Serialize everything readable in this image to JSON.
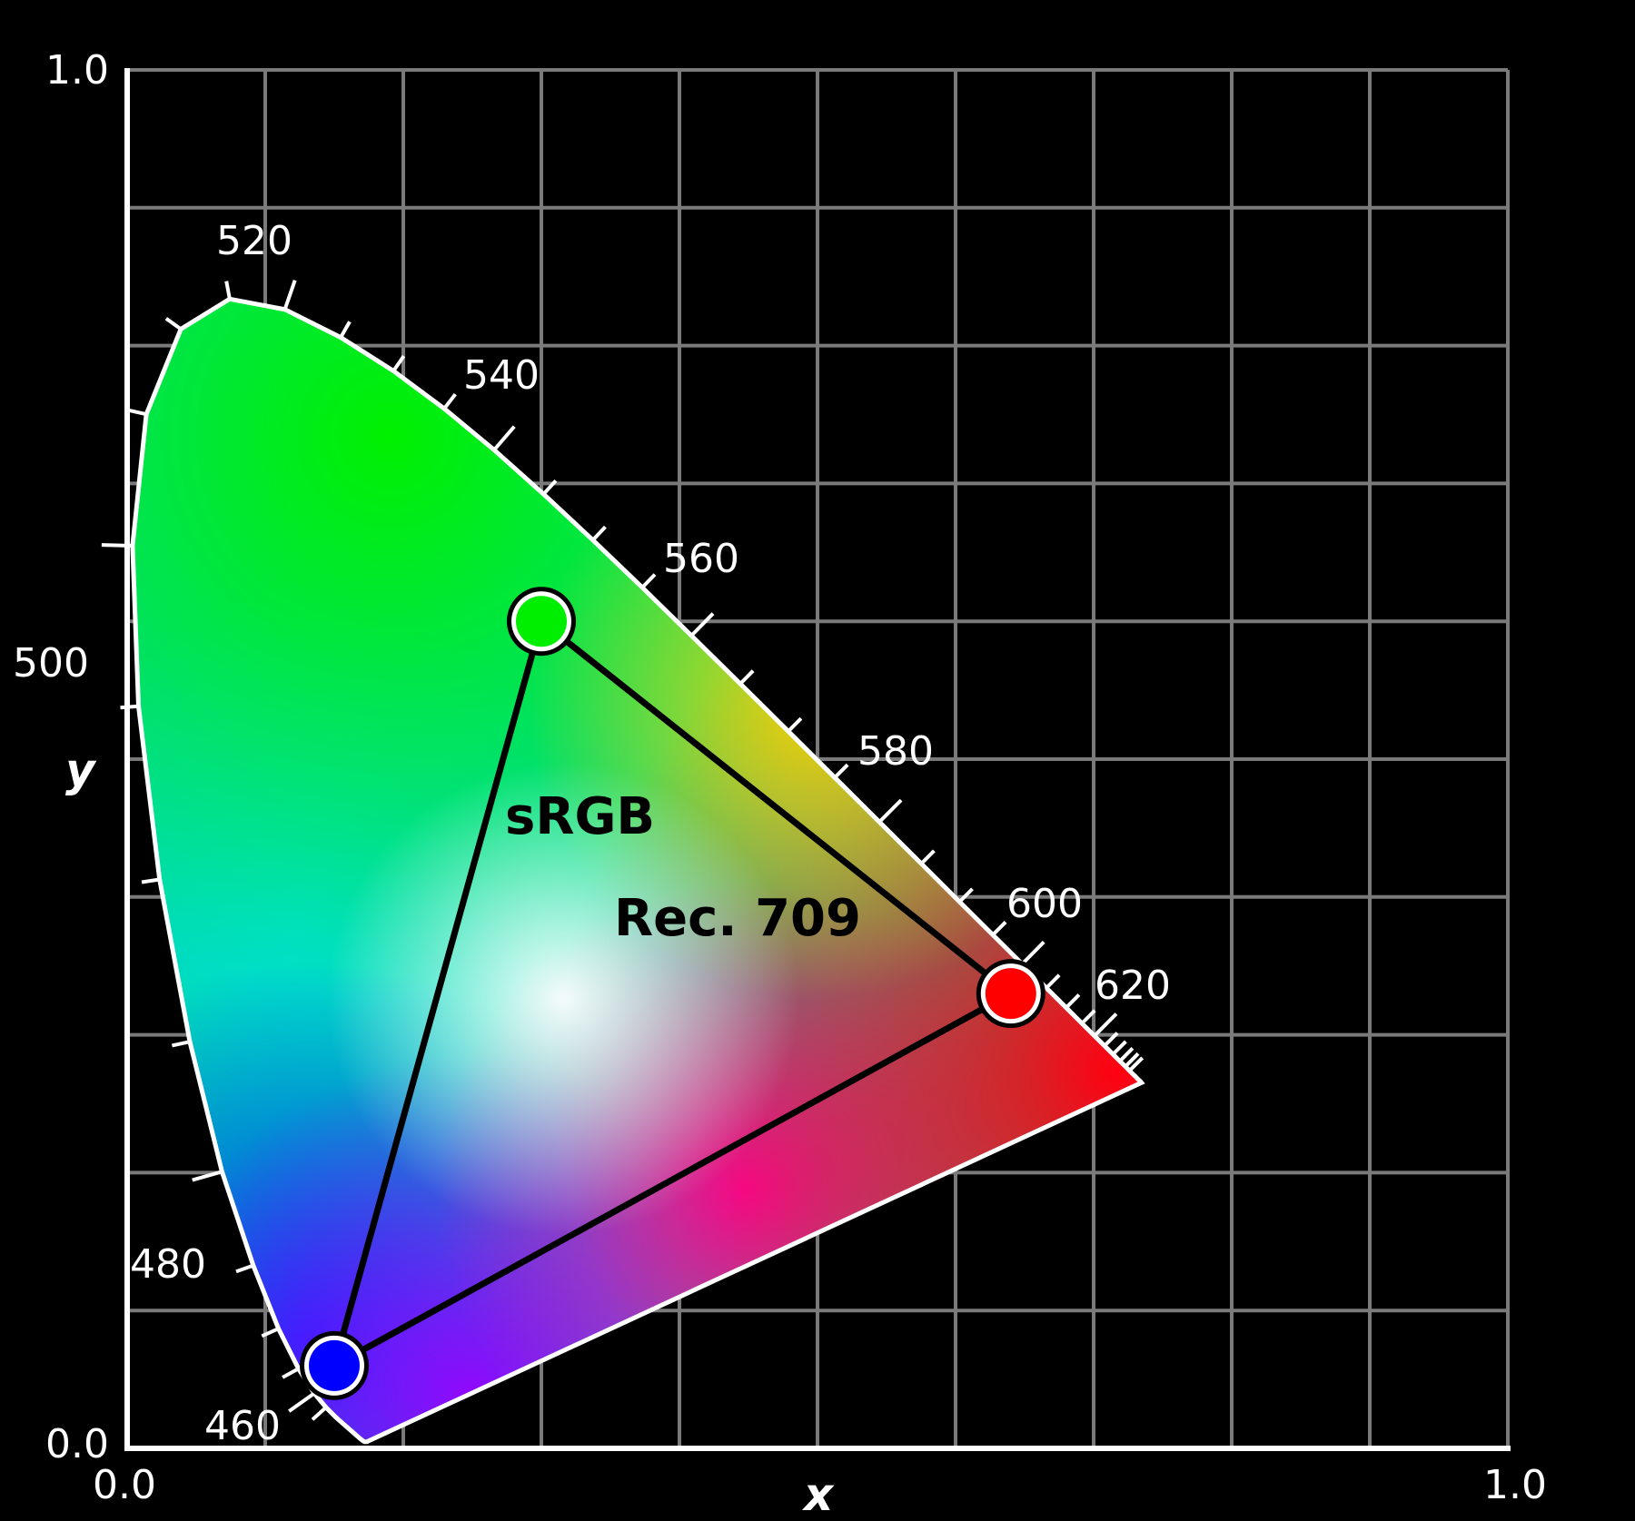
{
  "axes": {
    "x_name": "x",
    "y_name": "y",
    "x_tick_labels": [
      "0.0",
      "1.0"
    ],
    "y_tick_labels": [
      "0.0",
      "1.0"
    ],
    "xlim": [
      0.0,
      1.0
    ],
    "ylim": [
      0.0,
      1.0
    ],
    "grid": true,
    "grid_divisions": 10
  },
  "wavelength_labels": [
    "460",
    "480",
    "500",
    "520",
    "540",
    "560",
    "580",
    "600",
    "620"
  ],
  "gamut_labels": {
    "srgb": "sRGB",
    "rec709": "Rec. 709"
  },
  "colors": {
    "background": "#000000",
    "grid": "#7a7a7a",
    "axis": "#ffffff",
    "primary_red": "#ff0000",
    "primary_green": "#00ee00",
    "primary_blue": "#0000ff"
  },
  "chart_data": {
    "type": "scatter",
    "title": "",
    "xlabel": "x",
    "ylabel": "y",
    "xlim": [
      0.0,
      1.0
    ],
    "ylim": [
      0.0,
      1.0
    ],
    "series": [
      {
        "name": "sRGB",
        "points": [
          {
            "label": "red",
            "x": 0.64,
            "y": 0.33
          },
          {
            "label": "green",
            "x": 0.3,
            "y": 0.6
          },
          {
            "label": "blue",
            "x": 0.15,
            "y": 0.06
          }
        ]
      }
    ],
    "spectral_locus_marks": [
      {
        "nm": 460,
        "x": 0.144,
        "y": 0.03
      },
      {
        "nm": 480,
        "x": 0.091,
        "y": 0.133
      },
      {
        "nm": 500,
        "x": 0.008,
        "y": 0.538
      },
      {
        "nm": 520,
        "x": 0.074,
        "y": 0.834
      },
      {
        "nm": 540,
        "x": 0.23,
        "y": 0.754
      },
      {
        "nm": 560,
        "x": 0.373,
        "y": 0.624
      },
      {
        "nm": 580,
        "x": 0.512,
        "y": 0.487
      },
      {
        "nm": 600,
        "x": 0.627,
        "y": 0.372
      },
      {
        "nm": 620,
        "x": 0.691,
        "y": 0.308
      }
    ]
  }
}
